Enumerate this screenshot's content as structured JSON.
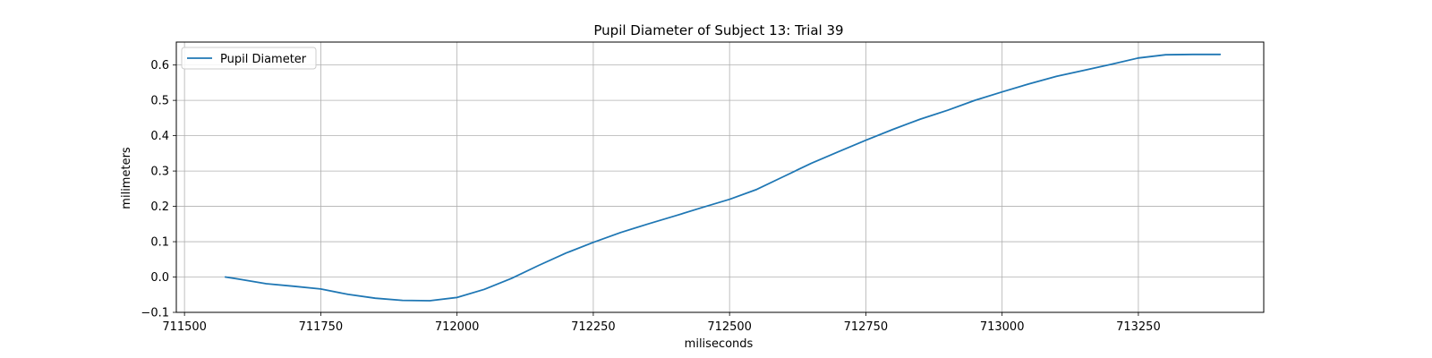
{
  "chart_data": {
    "type": "line",
    "title": "Pupil Diameter of Subject 13: Trial 39",
    "xlabel": "miliseconds",
    "ylabel": "milimeters",
    "xlim": [
      711485,
      713480
    ],
    "ylim": [
      -0.1,
      0.665
    ],
    "xticks": [
      711500,
      711750,
      712000,
      712250,
      712500,
      712750,
      713000,
      713250
    ],
    "yticks": [
      -0.1,
      0.0,
      0.1,
      0.2,
      0.3,
      0.4,
      0.5,
      0.6
    ],
    "xtick_labels": [
      "711500",
      "711750",
      "712000",
      "712250",
      "712500",
      "712750",
      "713000",
      "713250"
    ],
    "ytick_labels": [
      "−0.1",
      "0.0",
      "0.1",
      "0.2",
      "0.3",
      "0.4",
      "0.5",
      "0.6"
    ],
    "grid": true,
    "legend_position": "top-left",
    "series": [
      {
        "name": "Pupil Diameter",
        "color": "#1f77b4",
        "x": [
          711575,
          711600,
          711650,
          711700,
          711750,
          711800,
          711850,
          711900,
          711950,
          712000,
          712050,
          712100,
          712150,
          712200,
          712250,
          712300,
          712350,
          712400,
          712450,
          712500,
          712550,
          712600,
          712650,
          712700,
          712750,
          712800,
          712850,
          712900,
          712950,
          713000,
          713050,
          713100,
          713150,
          713200,
          713250,
          713300,
          713350,
          713400
        ],
        "values": [
          0.0,
          -0.006,
          -0.019,
          -0.026,
          -0.034,
          -0.049,
          -0.06,
          -0.066,
          -0.067,
          -0.058,
          -0.035,
          -0.004,
          0.033,
          0.068,
          0.098,
          0.126,
          0.15,
          0.173,
          0.197,
          0.22,
          0.248,
          0.285,
          0.322,
          0.355,
          0.387,
          0.418,
          0.447,
          0.472,
          0.5,
          0.524,
          0.547,
          0.568,
          0.585,
          0.602,
          0.62,
          0.629,
          0.63,
          0.63
        ]
      }
    ]
  }
}
